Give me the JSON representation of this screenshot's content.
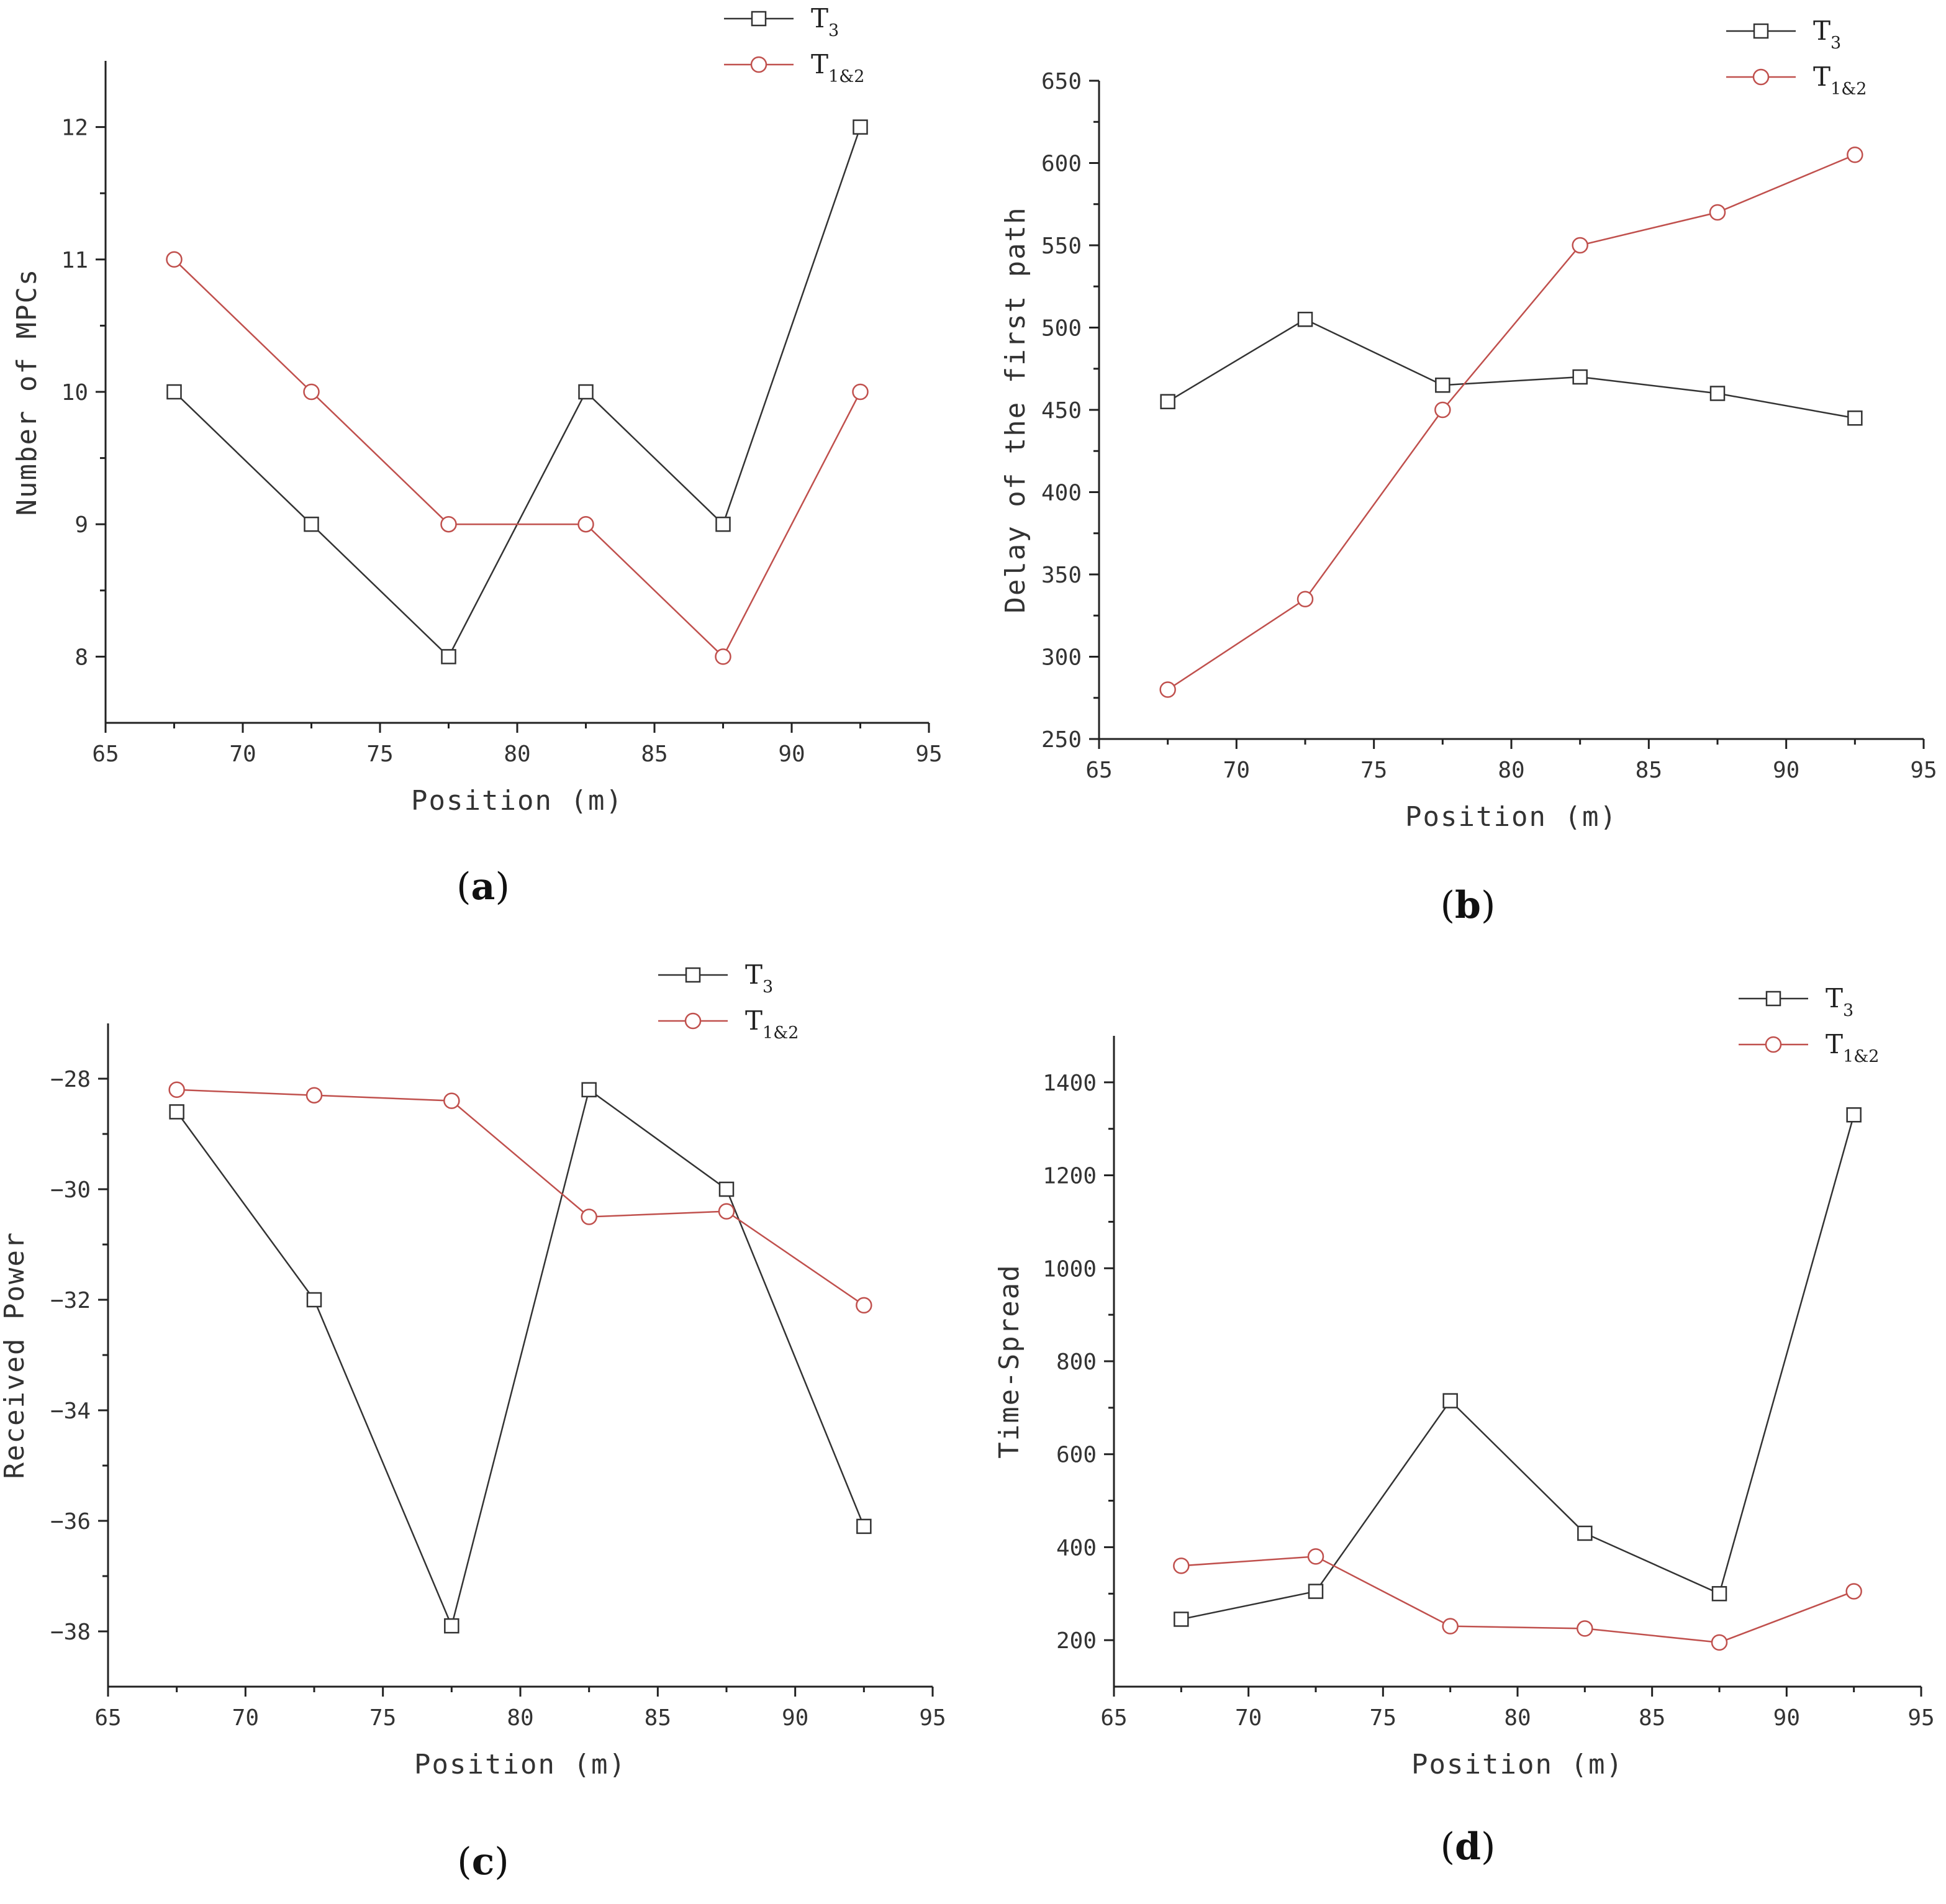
{
  "chart_data": [
    {
      "type": "line",
      "panel_label": "a",
      "xlabel": "Position (m)",
      "ylabel": "Number of MPCs",
      "xlim": [
        65,
        95
      ],
      "ylim": [
        7.5,
        12.5
      ],
      "xticks": [
        65,
        70,
        75,
        80,
        85,
        90,
        95
      ],
      "yticks": [
        8,
        9,
        10,
        11,
        12
      ],
      "x": [
        67.5,
        72.5,
        77.5,
        82.5,
        87.5,
        92.5
      ],
      "series": [
        {
          "name": "T",
          "sub": "3",
          "color": "#333333",
          "marker": "square",
          "values": [
            10,
            9,
            8,
            10,
            9,
            12
          ]
        },
        {
          "name": "T",
          "sub": "1&2",
          "color": "#c0504d",
          "marker": "circle",
          "values": [
            11,
            10,
            9,
            9,
            8,
            10
          ]
        }
      ]
    },
    {
      "type": "line",
      "panel_label": "b",
      "xlabel": "Position (m)",
      "ylabel": "Delay of the first path",
      "xlim": [
        65,
        95
      ],
      "ylim": [
        250,
        650
      ],
      "xticks": [
        65,
        70,
        75,
        80,
        85,
        90,
        95
      ],
      "yticks": [
        250,
        300,
        350,
        400,
        450,
        500,
        550,
        600,
        650
      ],
      "x": [
        67.5,
        72.5,
        77.5,
        82.5,
        87.5,
        92.5
      ],
      "series": [
        {
          "name": "T",
          "sub": "3",
          "color": "#333333",
          "marker": "square",
          "values": [
            455,
            505,
            465,
            470,
            460,
            445
          ]
        },
        {
          "name": "T",
          "sub": "1&2",
          "color": "#c0504d",
          "marker": "circle",
          "values": [
            280,
            335,
            450,
            550,
            570,
            605
          ]
        }
      ]
    },
    {
      "type": "line",
      "panel_label": "c",
      "xlabel": "Position (m)",
      "ylabel": "Received Power",
      "xlim": [
        65,
        95
      ],
      "ylim": [
        -39,
        -27
      ],
      "xticks": [
        65,
        70,
        75,
        80,
        85,
        90,
        95
      ],
      "yticks": [
        -38,
        -36,
        -34,
        -32,
        -30,
        -28
      ],
      "x": [
        67.5,
        72.5,
        77.5,
        82.5,
        87.5,
        92.5
      ],
      "series": [
        {
          "name": "T",
          "sub": "3",
          "color": "#333333",
          "marker": "square",
          "values": [
            -28.6,
            -32.0,
            -37.9,
            -28.2,
            -30.0,
            -36.1
          ]
        },
        {
          "name": "T",
          "sub": "1&2",
          "color": "#c0504d",
          "marker": "circle",
          "values": [
            -28.2,
            -28.3,
            -28.4,
            -30.5,
            -30.4,
            -32.1
          ]
        }
      ]
    },
    {
      "type": "line",
      "panel_label": "d",
      "xlabel": "Position (m)",
      "ylabel": "Time-Spread",
      "xlim": [
        65,
        95
      ],
      "ylim": [
        100,
        1500
      ],
      "xticks": [
        65,
        70,
        75,
        80,
        85,
        90,
        95
      ],
      "yticks": [
        200,
        400,
        600,
        800,
        1000,
        1200,
        1400
      ],
      "x": [
        67.5,
        72.5,
        77.5,
        82.5,
        87.5,
        92.5
      ],
      "series": [
        {
          "name": "T",
          "sub": "3",
          "color": "#333333",
          "marker": "square",
          "values": [
            245,
            305,
            715,
            430,
            300,
            1330
          ]
        },
        {
          "name": "T",
          "sub": "1&2",
          "color": "#c0504d",
          "marker": "circle",
          "values": [
            360,
            380,
            230,
            225,
            195,
            305
          ]
        }
      ]
    }
  ]
}
